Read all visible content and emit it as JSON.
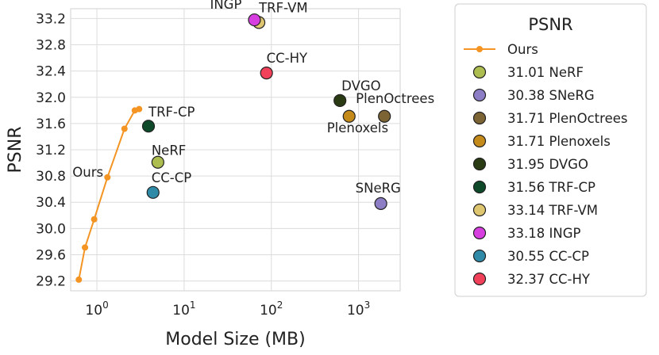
{
  "chart_data": {
    "type": "scatter",
    "xscale": "log",
    "xlabel": "Model Size (MB)",
    "ylabel": "PSNR",
    "xlim": [
      0.5,
      3000
    ],
    "ylim": [
      29.05,
      33.35
    ],
    "yticks": [
      29.2,
      29.6,
      30.0,
      30.4,
      30.8,
      31.2,
      31.6,
      32.0,
      32.4,
      32.8,
      33.2
    ],
    "ytick_labels": [
      "29.2",
      "29.6",
      "30.0",
      "30.4",
      "30.8",
      "31.2",
      "31.6",
      "32.0",
      "32.4",
      "32.8",
      "33.2"
    ],
    "xticks": [
      {
        "value": 1,
        "base": "10",
        "exp": "0"
      },
      {
        "value": 10,
        "base": "10",
        "exp": "1"
      },
      {
        "value": 100,
        "base": "10",
        "exp": "2"
      },
      {
        "value": 1000,
        "base": "10",
        "exp": "3"
      }
    ],
    "grid": true,
    "ours_line": {
      "name": "Ours",
      "color": "#f39423",
      "x": [
        0.62,
        0.73,
        0.93,
        1.32,
        2.07,
        2.72,
        3.05
      ],
      "y": [
        29.22,
        29.71,
        30.14,
        30.78,
        31.52,
        31.8,
        31.82
      ],
      "label": "Ours"
    },
    "points": [
      {
        "name": "NeRF",
        "x": 5.0,
        "y": 31.01,
        "color": "#aebd4f",
        "label": "NeRF"
      },
      {
        "name": "SNeRG",
        "x": 1800,
        "y": 30.38,
        "color": "#8c7dc4",
        "label": "SNeRG"
      },
      {
        "name": "PlenOctrees",
        "x": 1980,
        "y": 31.71,
        "color": "#7c6434",
        "label": "PlenOctrees"
      },
      {
        "name": "Plenoxels",
        "x": 780,
        "y": 31.71,
        "color": "#c48a1a",
        "label": "Plenoxels"
      },
      {
        "name": "DVGO",
        "x": 612,
        "y": 31.95,
        "color": "#2a3b13",
        "label": "DVGO"
      },
      {
        "name": "TRF-CP",
        "x": 3.9,
        "y": 31.56,
        "color": "#0e4a2a",
        "label": "TRF-CP"
      },
      {
        "name": "TRF-VM",
        "x": 72,
        "y": 33.14,
        "color": "#dec56f",
        "label": "TRF-VM"
      },
      {
        "name": "INGP",
        "x": 64,
        "y": 33.18,
        "color": "#d63ee0",
        "label": "INGP"
      },
      {
        "name": "CC-CP",
        "x": 4.4,
        "y": 30.55,
        "color": "#2f8aa8",
        "label": "CC-CP"
      },
      {
        "name": "CC-HY",
        "x": 88,
        "y": 32.37,
        "color": "#f0405a",
        "label": "CC-HY"
      }
    ],
    "legend": {
      "title": "PSNR",
      "placement": "outside-right",
      "entries": [
        {
          "marker": "line",
          "color": "#f39423",
          "label": "Ours"
        },
        {
          "marker": "circle",
          "color": "#aebd4f",
          "label": "31.01 NeRF"
        },
        {
          "marker": "circle",
          "color": "#8c7dc4",
          "label": "30.38 SNeRG"
        },
        {
          "marker": "circle",
          "color": "#7c6434",
          "label": "31.71 PlenOctrees"
        },
        {
          "marker": "circle",
          "color": "#c48a1a",
          "label": "31.71 Plenoxels"
        },
        {
          "marker": "circle",
          "color": "#2a3b13",
          "label": "31.95 DVGO"
        },
        {
          "marker": "circle",
          "color": "#0e4a2a",
          "label": "31.56 TRF-CP"
        },
        {
          "marker": "circle",
          "color": "#dec56f",
          "label": "33.14 TRF-VM"
        },
        {
          "marker": "circle",
          "color": "#d63ee0",
          "label": "33.18 INGP"
        },
        {
          "marker": "circle",
          "color": "#2f8aa8",
          "label": "30.55 CC-CP"
        },
        {
          "marker": "circle",
          "color": "#f0405a",
          "label": "32.37 CC-HY"
        }
      ]
    }
  }
}
